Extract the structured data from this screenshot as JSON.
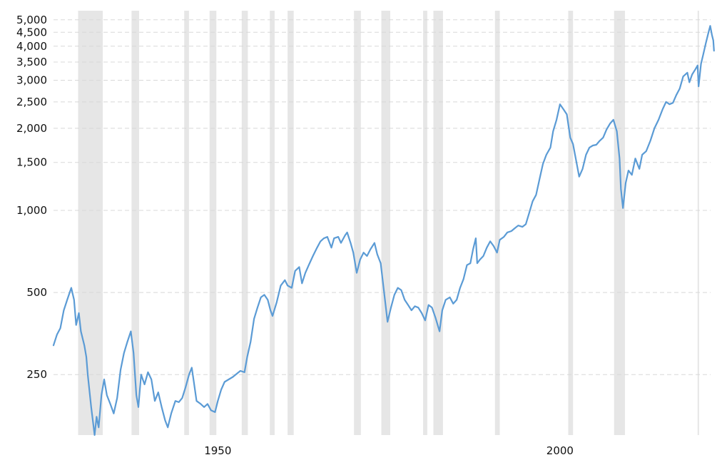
{
  "chart_data": {
    "type": "line",
    "title": "",
    "xlabel": "",
    "ylabel": "",
    "y_scale": "log",
    "xlim": [
      1926,
      2022
    ],
    "ylim": [
      150,
      5400
    ],
    "grid": true,
    "yticks": [
      {
        "value": 250,
        "label": "250"
      },
      {
        "value": 500,
        "label": "500"
      },
      {
        "value": 1000,
        "label": "1,000"
      },
      {
        "value": 1500,
        "label": "1,500"
      },
      {
        "value": 2000,
        "label": "2,000"
      },
      {
        "value": 2500,
        "label": "2,500"
      },
      {
        "value": 3000,
        "label": "3,000"
      },
      {
        "value": 3500,
        "label": "3,500"
      },
      {
        "value": 4000,
        "label": "4,000"
      },
      {
        "value": 4500,
        "label": "4,500"
      },
      {
        "value": 5000,
        "label": "5,000"
      }
    ],
    "xticks": [
      {
        "value": 1950,
        "label": "1950"
      },
      {
        "value": 2000,
        "label": "2000"
      }
    ],
    "recession_bands": [
      [
        1929.6,
        1933.2
      ],
      [
        1937.4,
        1938.5
      ],
      [
        1945.1,
        1945.8
      ],
      [
        1948.8,
        1949.8
      ],
      [
        1953.5,
        1954.4
      ],
      [
        1957.6,
        1958.3
      ],
      [
        1960.2,
        1961.1
      ],
      [
        1969.9,
        1970.9
      ],
      [
        1973.9,
        1975.2
      ],
      [
        1980.0,
        1980.6
      ],
      [
        1981.5,
        1982.9
      ],
      [
        1990.5,
        1991.2
      ],
      [
        2001.2,
        2001.9
      ],
      [
        2007.9,
        2009.5
      ],
      [
        2020.1,
        2020.3
      ]
    ],
    "series": [
      {
        "values": [
          [
            1926.0,
            320
          ],
          [
            1926.5,
            350
          ],
          [
            1927.0,
            370
          ],
          [
            1927.5,
            430
          ],
          [
            1928.0,
            470
          ],
          [
            1928.6,
            520
          ],
          [
            1929.0,
            470
          ],
          [
            1929.3,
            380
          ],
          [
            1929.7,
            420
          ],
          [
            1930.0,
            360
          ],
          [
            1930.5,
            320
          ],
          [
            1930.8,
            290
          ],
          [
            1931.0,
            250
          ],
          [
            1931.5,
            190
          ],
          [
            1932.0,
            150
          ],
          [
            1932.3,
            175
          ],
          [
            1932.6,
            160
          ],
          [
            1933.0,
            210
          ],
          [
            1933.4,
            240
          ],
          [
            1933.8,
            210
          ],
          [
            1934.3,
            195
          ],
          [
            1934.8,
            180
          ],
          [
            1935.3,
            205
          ],
          [
            1935.8,
            260
          ],
          [
            1936.3,
            300
          ],
          [
            1936.8,
            330
          ],
          [
            1937.3,
            360
          ],
          [
            1937.7,
            300
          ],
          [
            1938.1,
            210
          ],
          [
            1938.4,
            190
          ],
          [
            1938.8,
            250
          ],
          [
            1939.3,
            230
          ],
          [
            1939.8,
            255
          ],
          [
            1940.3,
            240
          ],
          [
            1940.8,
            200
          ],
          [
            1941.3,
            215
          ],
          [
            1941.8,
            190
          ],
          [
            1942.3,
            170
          ],
          [
            1942.7,
            160
          ],
          [
            1943.2,
            180
          ],
          [
            1943.8,
            200
          ],
          [
            1944.3,
            198
          ],
          [
            1944.8,
            205
          ],
          [
            1945.3,
            225
          ],
          [
            1945.8,
            250
          ],
          [
            1946.2,
            265
          ],
          [
            1946.5,
            235
          ],
          [
            1946.9,
            200
          ],
          [
            1947.5,
            195
          ],
          [
            1948.0,
            190
          ],
          [
            1948.5,
            195
          ],
          [
            1949.0,
            185
          ],
          [
            1949.6,
            182
          ],
          [
            1950.0,
            200
          ],
          [
            1950.5,
            220
          ],
          [
            1951.0,
            235
          ],
          [
            1951.6,
            240
          ],
          [
            1952.2,
            245
          ],
          [
            1952.8,
            252
          ],
          [
            1953.3,
            258
          ],
          [
            1953.9,
            255
          ],
          [
            1954.3,
            290
          ],
          [
            1954.8,
            330
          ],
          [
            1955.3,
            400
          ],
          [
            1955.8,
            440
          ],
          [
            1956.3,
            480
          ],
          [
            1956.8,
            490
          ],
          [
            1957.3,
            470
          ],
          [
            1957.7,
            430
          ],
          [
            1958.0,
            410
          ],
          [
            1958.6,
            460
          ],
          [
            1959.2,
            530
          ],
          [
            1959.8,
            555
          ],
          [
            1960.2,
            530
          ],
          [
            1960.8,
            520
          ],
          [
            1961.3,
            600
          ],
          [
            1961.9,
            620
          ],
          [
            1962.3,
            540
          ],
          [
            1962.8,
            590
          ],
          [
            1963.3,
            630
          ],
          [
            1963.9,
            680
          ],
          [
            1964.5,
            730
          ],
          [
            1965.0,
            770
          ],
          [
            1965.5,
            790
          ],
          [
            1966.0,
            800
          ],
          [
            1966.6,
            730
          ],
          [
            1967.0,
            790
          ],
          [
            1967.6,
            800
          ],
          [
            1968.0,
            760
          ],
          [
            1968.6,
            810
          ],
          [
            1968.9,
            830
          ],
          [
            1969.4,
            760
          ],
          [
            1969.8,
            700
          ],
          [
            1970.3,
            590
          ],
          [
            1970.8,
            660
          ],
          [
            1971.3,
            700
          ],
          [
            1971.8,
            680
          ],
          [
            1972.3,
            720
          ],
          [
            1972.9,
            760
          ],
          [
            1973.3,
            690
          ],
          [
            1973.8,
            640
          ],
          [
            1974.3,
            500
          ],
          [
            1974.8,
            390
          ],
          [
            1975.3,
            440
          ],
          [
            1975.8,
            490
          ],
          [
            1976.3,
            520
          ],
          [
            1976.8,
            510
          ],
          [
            1977.3,
            470
          ],
          [
            1977.8,
            450
          ],
          [
            1978.3,
            430
          ],
          [
            1978.8,
            445
          ],
          [
            1979.3,
            440
          ],
          [
            1979.8,
            420
          ],
          [
            1980.3,
            395
          ],
          [
            1980.8,
            450
          ],
          [
            1981.3,
            440
          ],
          [
            1981.8,
            405
          ],
          [
            1982.4,
            360
          ],
          [
            1982.8,
            430
          ],
          [
            1983.3,
            470
          ],
          [
            1983.9,
            480
          ],
          [
            1984.4,
            455
          ],
          [
            1984.9,
            470
          ],
          [
            1985.4,
            520
          ],
          [
            1985.9,
            560
          ],
          [
            1986.4,
            630
          ],
          [
            1986.9,
            640
          ],
          [
            1987.3,
            720
          ],
          [
            1987.7,
            790
          ],
          [
            1987.9,
            640
          ],
          [
            1988.3,
            660
          ],
          [
            1988.8,
            680
          ],
          [
            1989.3,
            730
          ],
          [
            1989.8,
            770
          ],
          [
            1990.3,
            740
          ],
          [
            1990.8,
            700
          ],
          [
            1991.2,
            780
          ],
          [
            1991.8,
            800
          ],
          [
            1992.3,
            830
          ],
          [
            1992.9,
            840
          ],
          [
            1993.4,
            860
          ],
          [
            1993.9,
            880
          ],
          [
            1994.5,
            870
          ],
          [
            1995.0,
            890
          ],
          [
            1995.5,
            980
          ],
          [
            1996.0,
            1080
          ],
          [
            1996.5,
            1140
          ],
          [
            1997.0,
            1300
          ],
          [
            1997.5,
            1480
          ],
          [
            1998.0,
            1600
          ],
          [
            1998.6,
            1700
          ],
          [
            1999.0,
            1950
          ],
          [
            1999.5,
            2150
          ],
          [
            2000.0,
            2450
          ],
          [
            2000.5,
            2350
          ],
          [
            2001.0,
            2250
          ],
          [
            2001.5,
            1850
          ],
          [
            2001.9,
            1750
          ],
          [
            2002.3,
            1550
          ],
          [
            2002.8,
            1330
          ],
          [
            2003.3,
            1420
          ],
          [
            2003.8,
            1600
          ],
          [
            2004.3,
            1700
          ],
          [
            2004.8,
            1730
          ],
          [
            2005.3,
            1740
          ],
          [
            2005.8,
            1800
          ],
          [
            2006.3,
            1850
          ],
          [
            2006.8,
            1980
          ],
          [
            2007.3,
            2080
          ],
          [
            2007.8,
            2150
          ],
          [
            2008.3,
            1950
          ],
          [
            2008.7,
            1550
          ],
          [
            2008.9,
            1200
          ],
          [
            2009.2,
            1020
          ],
          [
            2009.6,
            1260
          ],
          [
            2010.0,
            1400
          ],
          [
            2010.5,
            1350
          ],
          [
            2011.0,
            1550
          ],
          [
            2011.6,
            1420
          ],
          [
            2012.0,
            1600
          ],
          [
            2012.6,
            1650
          ],
          [
            2013.2,
            1800
          ],
          [
            2013.8,
            2000
          ],
          [
            2014.4,
            2150
          ],
          [
            2015.0,
            2350
          ],
          [
            2015.5,
            2500
          ],
          [
            2016.0,
            2450
          ],
          [
            2016.5,
            2480
          ],
          [
            2017.0,
            2650
          ],
          [
            2017.5,
            2800
          ],
          [
            2018.0,
            3100
          ],
          [
            2018.6,
            3200
          ],
          [
            2018.9,
            2950
          ],
          [
            2019.3,
            3150
          ],
          [
            2019.8,
            3300
          ],
          [
            2020.1,
            3400
          ],
          [
            2020.25,
            2850
          ],
          [
            2020.6,
            3450
          ],
          [
            2020.9,
            3700
          ],
          [
            2021.3,
            4100
          ],
          [
            2021.7,
            4500
          ],
          [
            2021.95,
            4750
          ],
          [
            2022.2,
            4400
          ],
          [
            2022.4,
            4200
          ],
          [
            2022.5,
            3850
          ]
        ]
      }
    ]
  }
}
